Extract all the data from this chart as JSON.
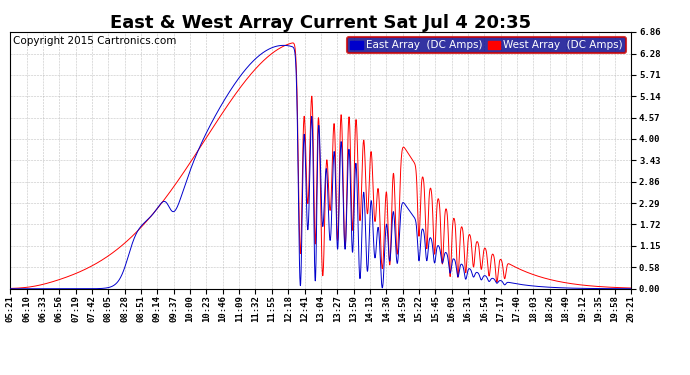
{
  "title": "East & West Array Current Sat Jul 4 20:35",
  "copyright": "Copyright 2015 Cartronics.com",
  "legend_east": "East Array  (DC Amps)",
  "legend_west": "West Array  (DC Amps)",
  "east_color": "#0000cc",
  "west_color": "#ff0000",
  "background_color": "#ffffff",
  "grid_color": "#999999",
  "ylim": [
    0.0,
    6.86
  ],
  "yticks": [
    0.0,
    0.58,
    1.15,
    1.72,
    2.29,
    2.86,
    3.43,
    4.0,
    4.57,
    5.14,
    5.71,
    6.28,
    6.86
  ],
  "xtick_labels": [
    "05:21",
    "06:10",
    "06:33",
    "06:56",
    "07:19",
    "07:42",
    "08:05",
    "08:28",
    "08:51",
    "09:14",
    "09:37",
    "10:00",
    "10:23",
    "10:46",
    "11:09",
    "11:32",
    "11:55",
    "12:18",
    "12:41",
    "13:04",
    "13:27",
    "13:50",
    "14:13",
    "14:36",
    "14:59",
    "15:22",
    "15:45",
    "16:08",
    "16:31",
    "16:54",
    "17:17",
    "17:40",
    "18:03",
    "18:26",
    "18:49",
    "19:12",
    "19:35",
    "19:58",
    "20:21"
  ],
  "title_fontsize": 13,
  "tick_fontsize": 6.5,
  "copyright_fontsize": 7.5,
  "legend_fontsize": 7.5,
  "figwidth": 6.9,
  "figheight": 3.75,
  "dpi": 100
}
